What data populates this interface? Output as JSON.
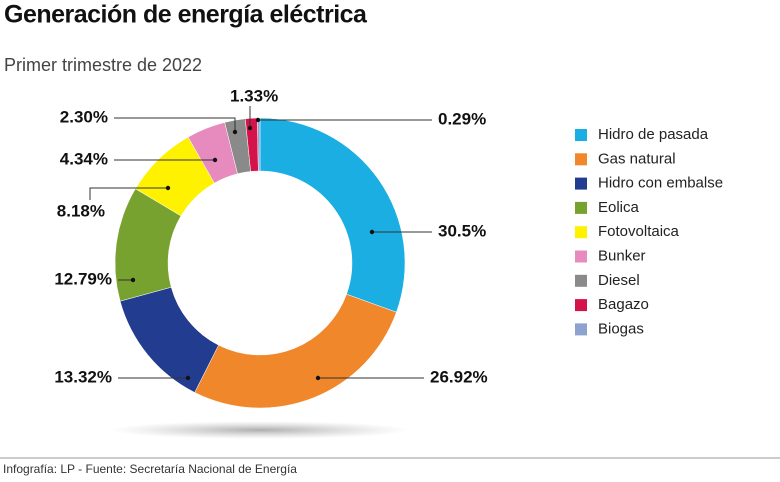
{
  "chart_data": {
    "type": "donut",
    "title": "Generación de energía eléctrica",
    "subtitle": "Primer trimestre de 2022",
    "categories": [
      "Hidro de pasada",
      "Gas natural",
      "Hidro con embalse",
      "Eolica",
      "Fotovoltaica",
      "Bunker",
      "Diesel",
      "Bagazo",
      "Biogas"
    ],
    "values": [
      30.5,
      26.92,
      13.32,
      12.79,
      8.18,
      4.34,
      2.3,
      1.33,
      0.29
    ],
    "value_labels": [
      "30.5%",
      "26.92%",
      "13.32%",
      "12.79%",
      "8.18%",
      "4.34%",
      "2.30%",
      "1.33%",
      "0.29%"
    ],
    "colors": [
      "#1aaee3",
      "#f0872a",
      "#223d8f",
      "#78a22f",
      "#fff200",
      "#e78bbf",
      "#8a8a8a",
      "#d4134a",
      "#8ea2cf"
    ],
    "legend": "right",
    "source": "Infografía: LP - Fuente: Secretaría Nacional de Energía"
  }
}
